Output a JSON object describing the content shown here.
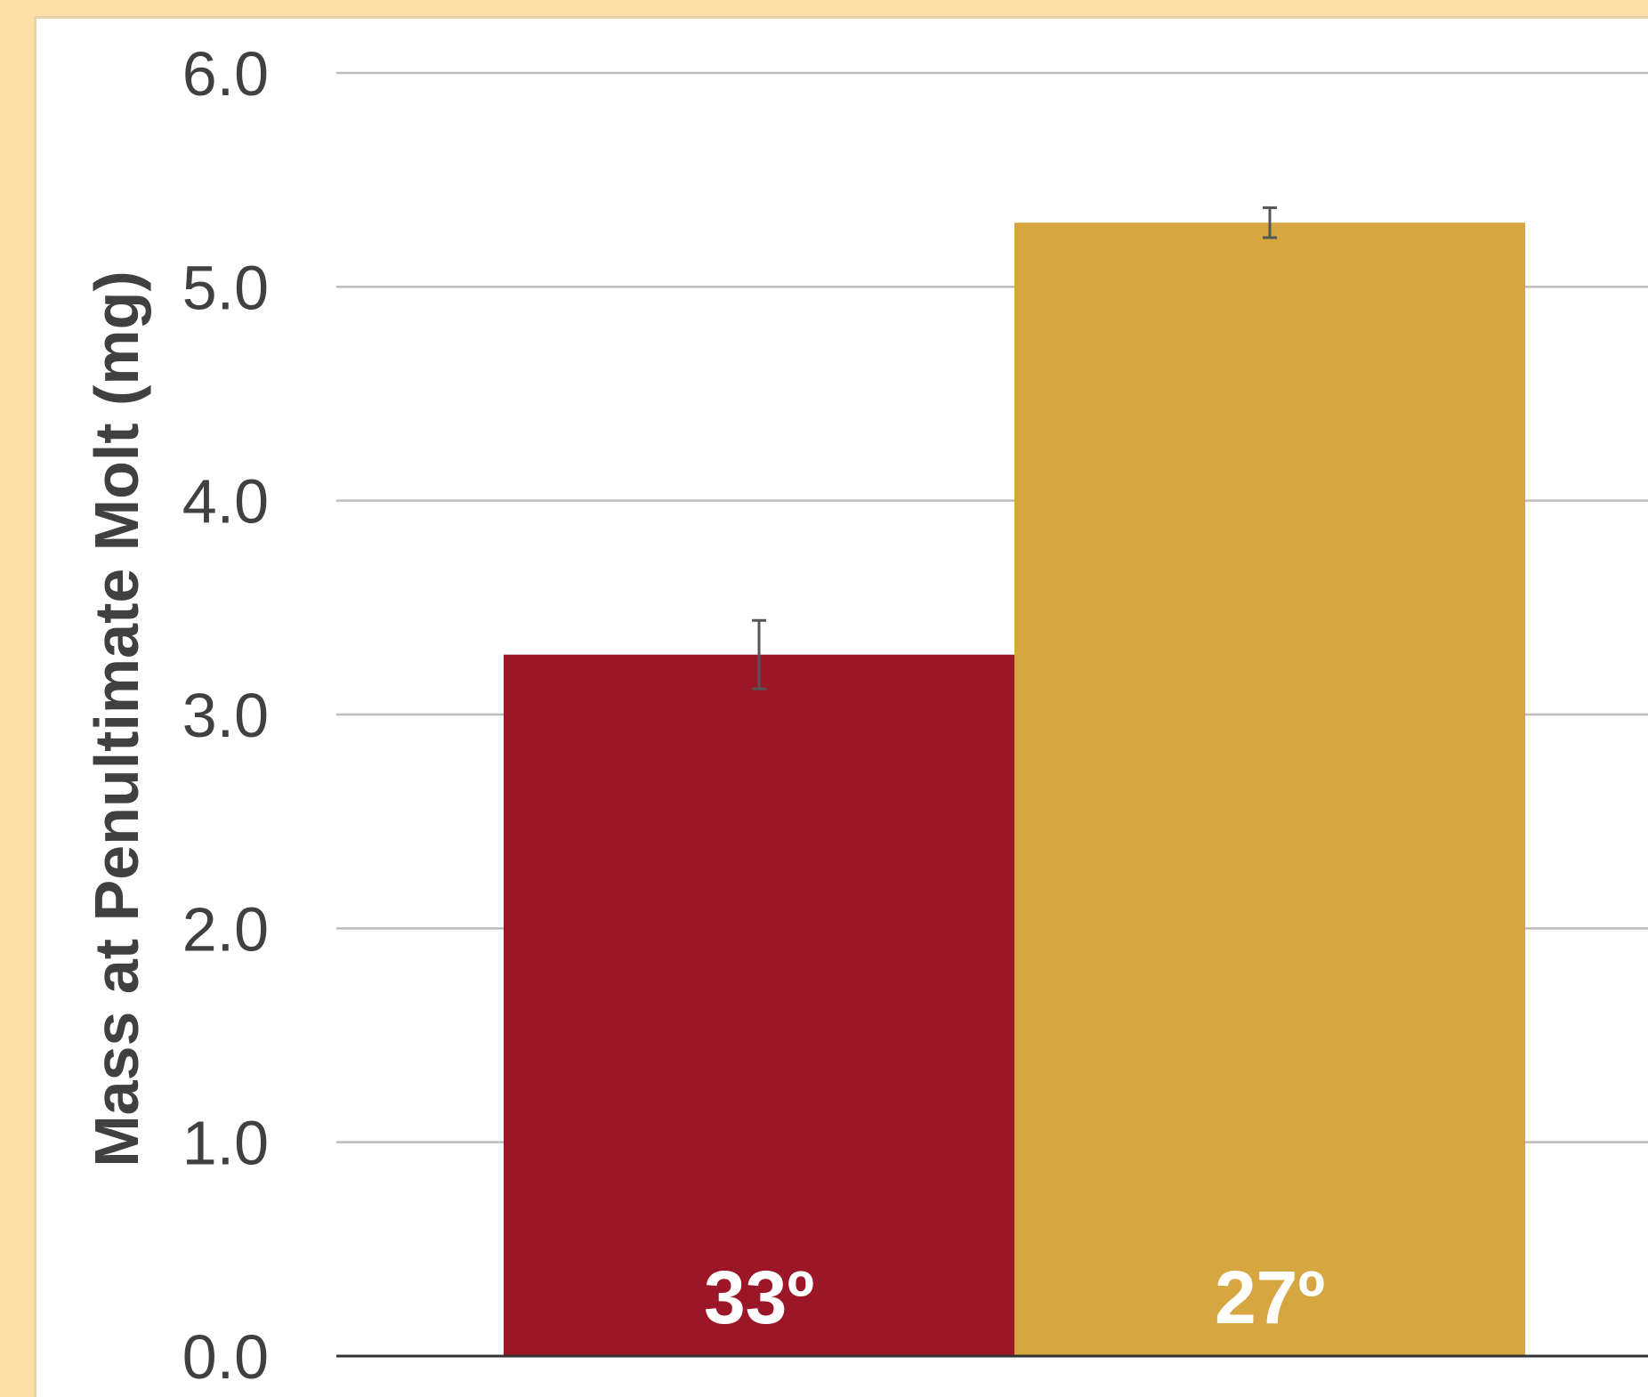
{
  "chart_data": {
    "type": "bar",
    "title": "",
    "xlabel": "",
    "ylabel": "Mass at Penultimate Molt (mg)",
    "categories": [
      "33º",
      "27º"
    ],
    "values": [
      3.28,
      5.3
    ],
    "errors": [
      0.16,
      0.07
    ],
    "ylim": [
      0,
      6
    ],
    "yticks": [
      "0.0",
      "1.0",
      "2.0",
      "3.0",
      "4.0",
      "5.0",
      "6.0"
    ],
    "grid": true,
    "legend": "none",
    "colors": [
      "#9b1627",
      "#d6a641"
    ]
  }
}
